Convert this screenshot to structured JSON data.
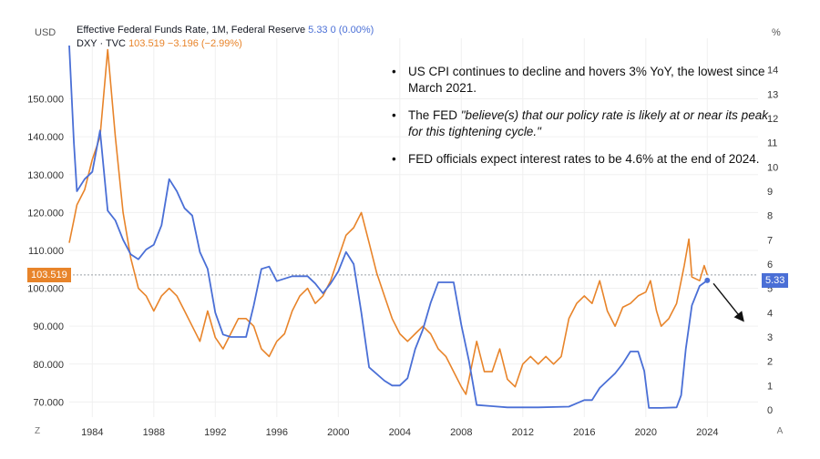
{
  "legend": {
    "fed": {
      "name": "Effective Federal Funds Rate, 1M, Federal Reserve",
      "value": "5.33",
      "change": "0 (0.00%)"
    },
    "dxy": {
      "name": "DXY · TVC",
      "value": "103.519",
      "change": "−3.196 (−2.99%)"
    }
  },
  "axes": {
    "left_unit": "USD",
    "right_unit": "%",
    "left_ticks": [
      "70.000",
      "80.000",
      "90.000",
      "100.000",
      "110.000",
      "120.000",
      "130.000",
      "140.000",
      "150.000"
    ],
    "right_ticks": [
      "0",
      "1",
      "2",
      "3",
      "4",
      "5",
      "6",
      "7",
      "8",
      "9",
      "10",
      "11",
      "12",
      "13",
      "14"
    ],
    "x_ticks": [
      "1984",
      "1988",
      "1992",
      "1996",
      "2000",
      "2004",
      "2008",
      "2012",
      "2016",
      "2020",
      "2024"
    ]
  },
  "badges": {
    "dxy_last": "103.519",
    "fed_last": "5.33"
  },
  "corners": {
    "left": "Z",
    "right": "A"
  },
  "notes": {
    "n1": "US CPI continues to decline and hovers 3% YoY, the lowest since March 2021.",
    "n2_prefix": "The FED ",
    "n2_quote": "\"believe(s) that our policy rate is likely at or near its peak for this tightening cycle.\"",
    "n3": "FED officials expect interest rates to be 4.6% at the end of 2024.",
    "bullet": "•"
  },
  "colors": {
    "fed": "#4a6fd6",
    "dxy": "#e8842a",
    "grid": "#f0f0f0",
    "ref": "#9aa0a6"
  },
  "chart_data": {
    "type": "line",
    "x_range": [
      1982.5,
      2027.3
    ],
    "left_axis": {
      "unit": "USD",
      "ylim": [
        66,
        166
      ]
    },
    "right_axis": {
      "unit": "%",
      "ylim": [
        -0.3,
        15.3
      ]
    },
    "series": [
      {
        "name": "Effective Federal Funds Rate, 1M, Federal Reserve",
        "axis": "right",
        "points": [
          [
            1982.5,
            15.0
          ],
          [
            1982.8,
            11.0
          ],
          [
            1983.0,
            9.0
          ],
          [
            1983.5,
            9.5
          ],
          [
            1984.0,
            9.8
          ],
          [
            1984.5,
            11.5
          ],
          [
            1985.0,
            8.2
          ],
          [
            1985.5,
            7.8
          ],
          [
            1986.0,
            7.0
          ],
          [
            1986.5,
            6.4
          ],
          [
            1987.0,
            6.2
          ],
          [
            1987.5,
            6.6
          ],
          [
            1988.0,
            6.8
          ],
          [
            1988.5,
            7.6
          ],
          [
            1989.0,
            9.5
          ],
          [
            1989.5,
            9.0
          ],
          [
            1990.0,
            8.3
          ],
          [
            1990.5,
            8.0
          ],
          [
            1991.0,
            6.5
          ],
          [
            1991.5,
            5.8
          ],
          [
            1992.0,
            4.0
          ],
          [
            1992.5,
            3.1
          ],
          [
            1993.0,
            3.0
          ],
          [
            1994.0,
            3.0
          ],
          [
            1994.5,
            4.3
          ],
          [
            1995.0,
            5.8
          ],
          [
            1995.5,
            5.9
          ],
          [
            1996.0,
            5.3
          ],
          [
            1997.0,
            5.5
          ],
          [
            1998.0,
            5.5
          ],
          [
            1998.5,
            5.2
          ],
          [
            1999.0,
            4.8
          ],
          [
            1999.5,
            5.2
          ],
          [
            2000.0,
            5.7
          ],
          [
            2000.5,
            6.5
          ],
          [
            2001.0,
            6.0
          ],
          [
            2001.5,
            4.0
          ],
          [
            2002.0,
            1.75
          ],
          [
            2003.0,
            1.2
          ],
          [
            2003.5,
            1.0
          ],
          [
            2004.0,
            1.0
          ],
          [
            2004.5,
            1.3
          ],
          [
            2005.0,
            2.5
          ],
          [
            2005.5,
            3.3
          ],
          [
            2006.0,
            4.4
          ],
          [
            2006.5,
            5.25
          ],
          [
            2007.0,
            5.25
          ],
          [
            2007.5,
            5.25
          ],
          [
            2008.0,
            3.5
          ],
          [
            2008.5,
            2.0
          ],
          [
            2009.0,
            0.2
          ],
          [
            2010.0,
            0.15
          ],
          [
            2011.0,
            0.1
          ],
          [
            2013.0,
            0.1
          ],
          [
            2015.0,
            0.13
          ],
          [
            2016.0,
            0.4
          ],
          [
            2016.5,
            0.4
          ],
          [
            2017.0,
            0.9
          ],
          [
            2017.5,
            1.2
          ],
          [
            2018.0,
            1.5
          ],
          [
            2018.5,
            1.9
          ],
          [
            2019.0,
            2.4
          ],
          [
            2019.5,
            2.4
          ],
          [
            2019.9,
            1.6
          ],
          [
            2020.2,
            0.08
          ],
          [
            2021.0,
            0.08
          ],
          [
            2022.0,
            0.1
          ],
          [
            2022.3,
            0.6
          ],
          [
            2022.6,
            2.5
          ],
          [
            2023.0,
            4.3
          ],
          [
            2023.5,
            5.1
          ],
          [
            2024.0,
            5.33
          ]
        ]
      },
      {
        "name": "DXY · TVC",
        "axis": "left",
        "points": [
          [
            1982.5,
            112
          ],
          [
            1982.8,
            118
          ],
          [
            1983.0,
            122
          ],
          [
            1983.5,
            126
          ],
          [
            1984.0,
            134
          ],
          [
            1984.5,
            140
          ],
          [
            1985.0,
            163
          ],
          [
            1985.5,
            140
          ],
          [
            1986.0,
            120
          ],
          [
            1986.5,
            108
          ],
          [
            1987.0,
            100
          ],
          [
            1987.5,
            98
          ],
          [
            1988.0,
            94
          ],
          [
            1988.5,
            98
          ],
          [
            1989.0,
            100
          ],
          [
            1989.5,
            98
          ],
          [
            1990.0,
            94
          ],
          [
            1990.5,
            90
          ],
          [
            1991.0,
            86
          ],
          [
            1991.5,
            94
          ],
          [
            1992.0,
            87
          ],
          [
            1992.5,
            84
          ],
          [
            1993.0,
            88
          ],
          [
            1993.5,
            92
          ],
          [
            1994.0,
            92
          ],
          [
            1994.5,
            90
          ],
          [
            1995.0,
            84
          ],
          [
            1995.5,
            82
          ],
          [
            1996.0,
            86
          ],
          [
            1996.5,
            88
          ],
          [
            1997.0,
            94
          ],
          [
            1997.5,
            98
          ],
          [
            1998.0,
            100
          ],
          [
            1998.5,
            96
          ],
          [
            1999.0,
            98
          ],
          [
            1999.5,
            102
          ],
          [
            2000.0,
            108
          ],
          [
            2000.5,
            114
          ],
          [
            2001.0,
            116
          ],
          [
            2001.5,
            120
          ],
          [
            2002.0,
            112
          ],
          [
            2002.5,
            104
          ],
          [
            2003.0,
            98
          ],
          [
            2003.5,
            92
          ],
          [
            2004.0,
            88
          ],
          [
            2004.5,
            86
          ],
          [
            2005.0,
            88
          ],
          [
            2005.5,
            90
          ],
          [
            2006.0,
            88
          ],
          [
            2006.5,
            84
          ],
          [
            2007.0,
            82
          ],
          [
            2007.5,
            78
          ],
          [
            2008.0,
            74
          ],
          [
            2008.3,
            72
          ],
          [
            2008.8,
            82
          ],
          [
            2009.0,
            86
          ],
          [
            2009.5,
            78
          ],
          [
            2010.0,
            78
          ],
          [
            2010.5,
            84
          ],
          [
            2011.0,
            76
          ],
          [
            2011.5,
            74
          ],
          [
            2012.0,
            80
          ],
          [
            2012.5,
            82
          ],
          [
            2013.0,
            80
          ],
          [
            2013.5,
            82
          ],
          [
            2014.0,
            80
          ],
          [
            2014.5,
            82
          ],
          [
            2015.0,
            92
          ],
          [
            2015.5,
            96
          ],
          [
            2016.0,
            98
          ],
          [
            2016.5,
            96
          ],
          [
            2017.0,
            102
          ],
          [
            2017.5,
            94
          ],
          [
            2018.0,
            90
          ],
          [
            2018.5,
            95
          ],
          [
            2019.0,
            96
          ],
          [
            2019.5,
            98
          ],
          [
            2020.0,
            99
          ],
          [
            2020.3,
            102
          ],
          [
            2020.7,
            94
          ],
          [
            2021.0,
            90
          ],
          [
            2021.5,
            92
          ],
          [
            2022.0,
            96
          ],
          [
            2022.5,
            106
          ],
          [
            2022.8,
            113
          ],
          [
            2023.0,
            103
          ],
          [
            2023.5,
            102
          ],
          [
            2023.8,
            106
          ],
          [
            2024.0,
            103.519
          ]
        ]
      }
    ],
    "reference_line": {
      "axis": "left",
      "value": 103.519
    },
    "projection": {
      "from": [
        2024.4,
        5.2
      ],
      "to": [
        2026.3,
        3.7
      ]
    }
  }
}
